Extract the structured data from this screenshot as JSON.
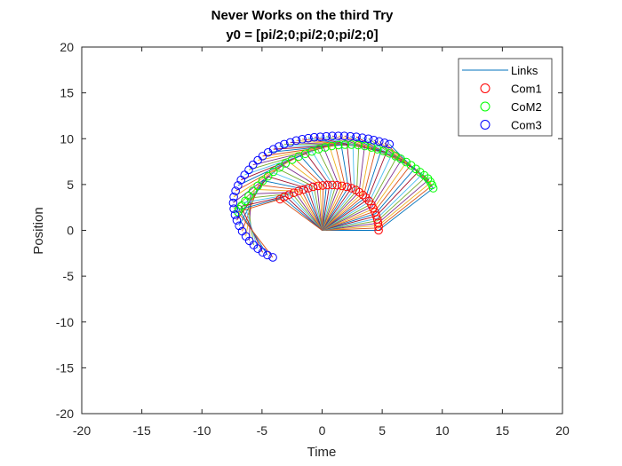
{
  "chart_data": {
    "type": "scatter",
    "title": "Never Works on the third Try",
    "subtitle": "y0 = [pi/2;0;pi/2;0;pi/2;0]",
    "xlabel": "Time",
    "ylabel": "Position",
    "xlim": [
      -20,
      20
    ],
    "ylim": [
      -20,
      20
    ],
    "xticks": [
      "-20",
      "-15",
      "-10",
      "-5",
      "0",
      "5",
      "10",
      "15",
      "20"
    ],
    "yticks": [
      "20",
      "15",
      "10",
      "5",
      "0",
      "-5",
      "-10",
      "-15",
      "-20"
    ],
    "grid": false,
    "legend_position": "top-right",
    "legend": [
      {
        "label": "Links",
        "kind": "line",
        "color": "#0072BD"
      },
      {
        "label": "Com1",
        "kind": "circle",
        "color": "#FF0000"
      },
      {
        "label": "CoM2",
        "kind": "circle",
        "color": "#00FF00"
      },
      {
        "label": "Com3",
        "kind": "circle",
        "color": "#0000FF"
      }
    ],
    "link_colors": [
      "#0072BD",
      "#D95319",
      "#EDB120",
      "#7E2F8E",
      "#77AC30",
      "#4DBEEE",
      "#A2142F"
    ],
    "series": [
      {
        "name": "Com1",
        "color": "#FF0000",
        "points": [
          [
            4.7,
            0.0
          ],
          [
            4.7,
            0.4
          ],
          [
            4.65,
            0.8
          ],
          [
            4.6,
            1.2
          ],
          [
            4.5,
            1.6
          ],
          [
            4.4,
            2.0
          ],
          [
            4.25,
            2.4
          ],
          [
            4.1,
            2.8
          ],
          [
            3.9,
            3.2
          ],
          [
            3.65,
            3.55
          ],
          [
            3.4,
            3.85
          ],
          [
            3.1,
            4.15
          ],
          [
            2.8,
            4.4
          ],
          [
            2.45,
            4.6
          ],
          [
            2.05,
            4.75
          ],
          [
            1.65,
            4.85
          ],
          [
            1.25,
            4.92
          ],
          [
            0.85,
            4.95
          ],
          [
            0.45,
            4.95
          ],
          [
            0.05,
            4.9
          ],
          [
            -0.35,
            4.85
          ],
          [
            -0.75,
            4.75
          ],
          [
            -1.15,
            4.6
          ],
          [
            -1.55,
            4.45
          ],
          [
            -1.95,
            4.3
          ],
          [
            -2.35,
            4.1
          ],
          [
            -2.75,
            3.9
          ],
          [
            -3.15,
            3.65
          ],
          [
            -3.5,
            3.4
          ]
        ]
      },
      {
        "name": "CoM2",
        "color": "#00FF00",
        "points": [
          [
            9.25,
            4.6
          ],
          [
            9.15,
            4.95
          ],
          [
            9.0,
            5.3
          ],
          [
            8.8,
            5.65
          ],
          [
            8.5,
            6.0
          ],
          [
            8.15,
            6.35
          ],
          [
            7.8,
            6.7
          ],
          [
            7.4,
            7.1
          ],
          [
            7.0,
            7.45
          ],
          [
            6.55,
            7.8
          ],
          [
            6.1,
            8.1
          ],
          [
            5.6,
            8.4
          ],
          [
            5.1,
            8.65
          ],
          [
            4.6,
            8.85
          ],
          [
            4.1,
            9.05
          ],
          [
            3.55,
            9.2
          ],
          [
            3.0,
            9.3
          ],
          [
            2.45,
            9.35
          ],
          [
            1.9,
            9.35
          ],
          [
            1.35,
            9.3
          ],
          [
            0.8,
            9.2
          ],
          [
            0.25,
            9.05
          ],
          [
            -0.3,
            8.85
          ],
          [
            -0.85,
            8.6
          ],
          [
            -1.4,
            8.35
          ],
          [
            -1.95,
            8.05
          ],
          [
            -2.5,
            7.7
          ],
          [
            -3.05,
            7.3
          ],
          [
            -3.55,
            6.85
          ],
          [
            -4.05,
            6.4
          ],
          [
            -4.5,
            5.9
          ],
          [
            -4.95,
            5.4
          ],
          [
            -5.35,
            4.85
          ],
          [
            -5.75,
            4.3
          ],
          [
            -6.1,
            3.75
          ],
          [
            -6.4,
            3.2
          ],
          [
            -6.7,
            2.7
          ],
          [
            -6.9,
            2.3
          ],
          [
            -7.0,
            2.0
          ]
        ]
      },
      {
        "name": "Com3",
        "color": "#0000FF",
        "points": [
          [
            5.6,
            9.4
          ],
          [
            5.2,
            9.55
          ],
          [
            4.75,
            9.7
          ],
          [
            4.3,
            9.85
          ],
          [
            3.85,
            10.0
          ],
          [
            3.35,
            10.1
          ],
          [
            2.85,
            10.2
          ],
          [
            2.35,
            10.25
          ],
          [
            1.85,
            10.3
          ],
          [
            1.35,
            10.3
          ],
          [
            0.85,
            10.3
          ],
          [
            0.35,
            10.25
          ],
          [
            -0.15,
            10.2
          ],
          [
            -0.65,
            10.15
          ],
          [
            -1.15,
            10.05
          ],
          [
            -1.65,
            9.95
          ],
          [
            -2.15,
            9.8
          ],
          [
            -2.65,
            9.6
          ],
          [
            -3.15,
            9.4
          ],
          [
            -3.6,
            9.15
          ],
          [
            -4.05,
            8.85
          ],
          [
            -4.5,
            8.5
          ],
          [
            -4.95,
            8.1
          ],
          [
            -5.35,
            7.65
          ],
          [
            -5.75,
            7.15
          ],
          [
            -6.1,
            6.6
          ],
          [
            -6.45,
            6.05
          ],
          [
            -6.75,
            5.5
          ],
          [
            -7.0,
            4.9
          ],
          [
            -7.2,
            4.3
          ],
          [
            -7.35,
            3.65
          ],
          [
            -7.4,
            3.0
          ],
          [
            -7.35,
            2.35
          ],
          [
            -7.25,
            1.7
          ],
          [
            -7.1,
            1.1
          ],
          [
            -6.9,
            0.5
          ],
          [
            -6.65,
            -0.1
          ],
          [
            -6.35,
            -0.65
          ],
          [
            -6.05,
            -1.15
          ],
          [
            -5.7,
            -1.6
          ],
          [
            -5.35,
            -2.0
          ],
          [
            -4.95,
            -2.4
          ],
          [
            -4.55,
            -2.7
          ],
          [
            -4.1,
            -2.95
          ]
        ]
      }
    ]
  }
}
